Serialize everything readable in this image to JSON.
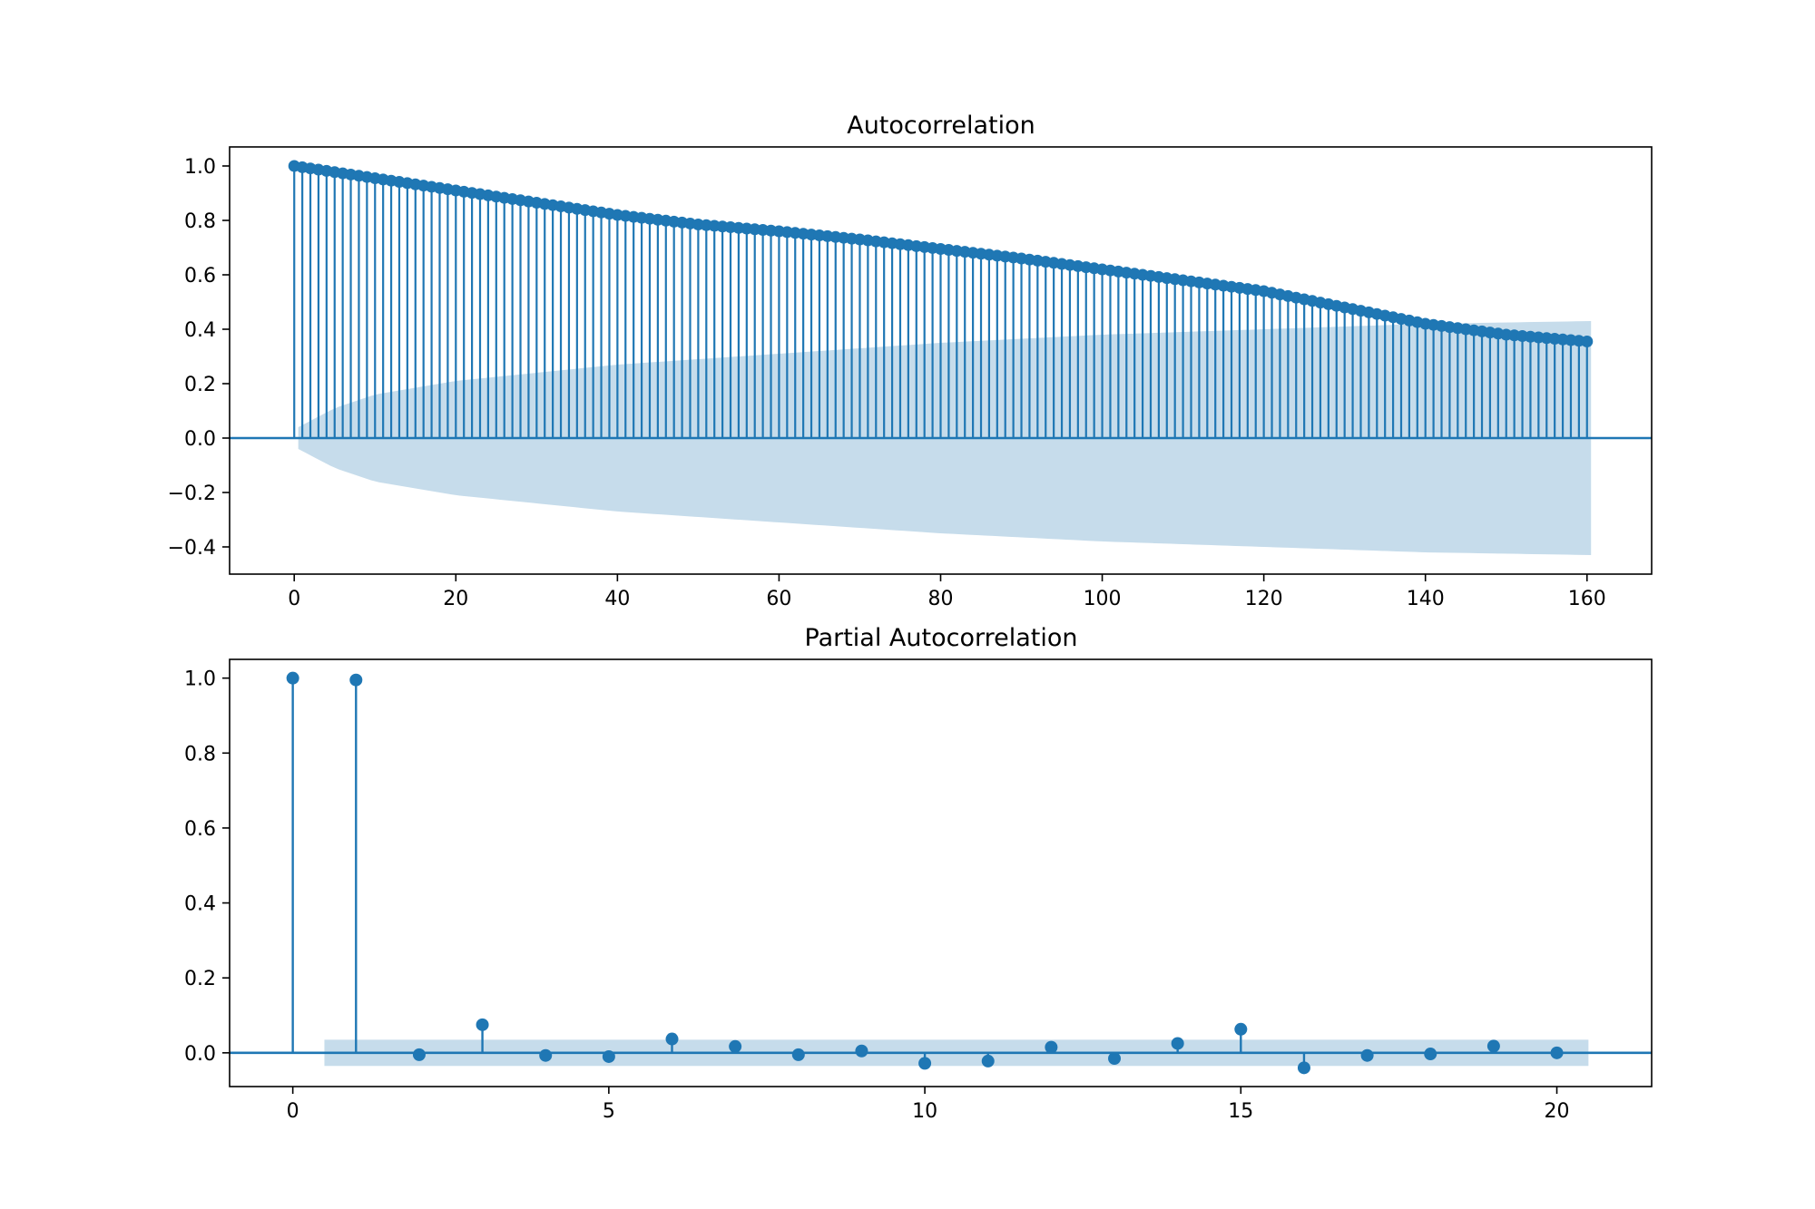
{
  "chart_data": [
    {
      "type": "stem",
      "title": "Autocorrelation",
      "xlabel": "",
      "ylabel": "",
      "xlim": [
        -8,
        168
      ],
      "ylim": [
        -0.5,
        1.07
      ],
      "xticks": [
        0,
        20,
        40,
        60,
        80,
        100,
        120,
        140,
        160
      ],
      "yticks": [
        -0.4,
        -0.2,
        0.0,
        0.2,
        0.4,
        0.6,
        0.8,
        1.0
      ],
      "ytick_labels": [
        "−0.4",
        "−0.2",
        "0.0",
        "0.2",
        "0.4",
        "0.6",
        "0.8",
        "1.0"
      ],
      "grid": false,
      "legend": "none",
      "colors": {
        "stem": "#1f77b4",
        "band": "#c6dceb",
        "axis": "#000000"
      },
      "lag_start": 0,
      "lag_end": 160,
      "acf_knots": [
        [
          0,
          1.0
        ],
        [
          10,
          0.955
        ],
        [
          20,
          0.91
        ],
        [
          30,
          0.865
        ],
        [
          40,
          0.82
        ],
        [
          50,
          0.785
        ],
        [
          60,
          0.76
        ],
        [
          70,
          0.73
        ],
        [
          80,
          0.695
        ],
        [
          90,
          0.66
        ],
        [
          100,
          0.62
        ],
        [
          110,
          0.58
        ],
        [
          120,
          0.54
        ],
        [
          130,
          0.48
        ],
        [
          140,
          0.42
        ],
        [
          150,
          0.38
        ],
        [
          160,
          0.355
        ]
      ],
      "confidence_band": {
        "x_start": 0.5,
        "x_end": 160.5,
        "upper_knots": [
          [
            0.5,
            0.04
          ],
          [
            5,
            0.11
          ],
          [
            10,
            0.16
          ],
          [
            20,
            0.21
          ],
          [
            40,
            0.27
          ],
          [
            60,
            0.31
          ],
          [
            80,
            0.35
          ],
          [
            100,
            0.38
          ],
          [
            120,
            0.4
          ],
          [
            140,
            0.42
          ],
          [
            160.5,
            0.43
          ]
        ]
      }
    },
    {
      "type": "stem",
      "title": "Partial Autocorrelation",
      "xlabel": "",
      "ylabel": "",
      "xlim": [
        -1,
        21.5
      ],
      "ylim": [
        -0.09,
        1.05
      ],
      "xticks": [
        0,
        5,
        10,
        15,
        20
      ],
      "yticks": [
        0.0,
        0.2,
        0.4,
        0.6,
        0.8,
        1.0
      ],
      "ytick_labels": [
        "0.0",
        "0.2",
        "0.4",
        "0.6",
        "0.8",
        "1.0"
      ],
      "grid": false,
      "legend": "none",
      "colors": {
        "stem": "#1f77b4",
        "band": "#c6dceb",
        "axis": "#000000"
      },
      "lags": [
        0,
        1,
        2,
        3,
        4,
        5,
        6,
        7,
        8,
        9,
        10,
        11,
        12,
        13,
        14,
        15,
        16,
        17,
        18,
        19,
        20
      ],
      "values": [
        1.0,
        0.995,
        -0.005,
        0.075,
        -0.007,
        -0.01,
        0.037,
        0.017,
        -0.005,
        0.005,
        -0.028,
        -0.022,
        0.015,
        -0.015,
        0.025,
        0.063,
        -0.04,
        -0.007,
        -0.003,
        0.018,
        0.0
      ],
      "confidence_band": {
        "x_start": 0.5,
        "x_end": 20.5,
        "upper": 0.035,
        "lower": -0.035
      }
    }
  ]
}
